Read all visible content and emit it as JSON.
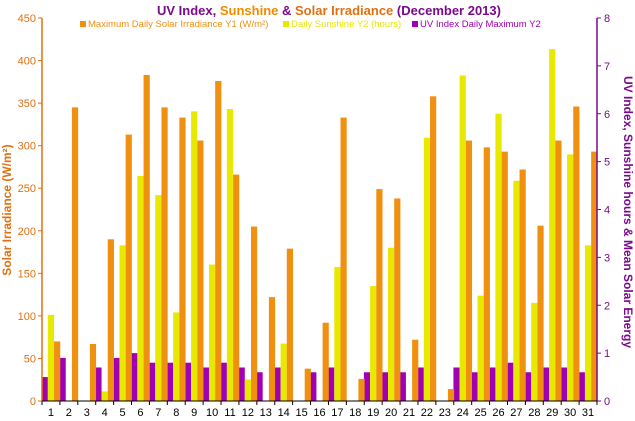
{
  "chart_data": {
    "type": "bar",
    "title_parts": [
      {
        "text": "UV Index",
        "color": "#7a0a8c"
      },
      {
        "text": ", ",
        "color": "#7a0a8c"
      },
      {
        "text": "Sunshine",
        "color": "#f08c00"
      },
      {
        "text": " & ",
        "color": "#7a0a8c"
      },
      {
        "text": "Solar Irradiance",
        "color": "#e07010"
      },
      {
        "text": " (December 2013)",
        "color": "#7a0a8c"
      }
    ],
    "ylabel_left": "Solar Irradiance (W/m²)",
    "ylabel_right": "UV Index, Sunshine hours & Mean Solar Energy",
    "ylim_left": [
      0,
      450
    ],
    "yticks_left": [
      0,
      50,
      100,
      150,
      200,
      250,
      300,
      350,
      400,
      450
    ],
    "ylim_right": [
      0,
      8
    ],
    "yticks_right": [
      0,
      1,
      2,
      3,
      4,
      5,
      6,
      7,
      8
    ],
    "legend_position": "top",
    "grid": false,
    "categories": [
      "1",
      "2",
      "3",
      "4",
      "5",
      "6",
      "7",
      "8",
      "9",
      "10",
      "11",
      "12",
      "13",
      "14",
      "15",
      "16",
      "17",
      "18",
      "19",
      "20",
      "21",
      "22",
      "23",
      "24",
      "25",
      "26",
      "27",
      "28",
      "29",
      "30",
      "31"
    ],
    "series": [
      {
        "name": "UV Index Daily Maximum Y2",
        "axis": "right",
        "color": "#a000b4",
        "values": [
          0.5,
          0.9,
          0,
          0.7,
          0.9,
          1.0,
          0.8,
          0.8,
          0.8,
          0.7,
          0.8,
          0.7,
          0.6,
          0.7,
          0,
          0.6,
          0.7,
          0,
          0.6,
          0.6,
          0.6,
          0.7,
          0,
          0.7,
          0.6,
          0.7,
          0.8,
          0.6,
          0.7,
          0.7,
          0.6
        ]
      },
      {
        "name": "Daily Sunshine Y2 (hours)",
        "axis": "right",
        "color": "#e8e800",
        "values": [
          1.8,
          0,
          0,
          0.2,
          3.25,
          4.7,
          4.3,
          1.85,
          6.05,
          2.85,
          6.1,
          0.45,
          0,
          1.2,
          0,
          0,
          2.8,
          0,
          2.4,
          3.2,
          0,
          5.5,
          0,
          6.8,
          2.2,
          6.0,
          4.6,
          2.05,
          7.35,
          5.15,
          3.25
        ]
      },
      {
        "name": "Maximum Daily Solar Irradiance Y1 (W/m²)",
        "axis": "left",
        "color": "#f09010",
        "values": [
          70,
          345,
          67,
          190,
          313,
          383,
          345,
          333,
          306,
          376,
          266,
          205,
          122,
          179,
          38,
          92,
          333,
          26,
          249,
          238,
          72,
          358,
          14,
          306,
          298,
          293,
          272,
          206,
          306,
          346,
          293
        ]
      }
    ]
  },
  "colors": {
    "left_axis": "#e07010",
    "right_axis": "#7a0a8c",
    "bottom_axis": "#000000"
  }
}
